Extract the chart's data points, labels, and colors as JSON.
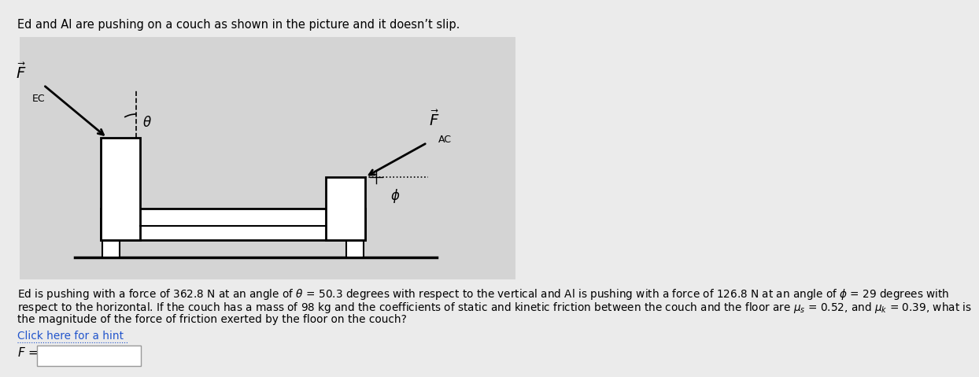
{
  "title": "Ed and Al are pushing on a couch as shown in the picture and it doesn’t slip.",
  "bg_color": "#ebebeb",
  "diagram_bg": "#d4d4d4",
  "line1": "Ed is pushing with a force of 362.8 N at an angle of $\\theta$ = 50.3 degrees with respect to the vertical and Al is pushing with a force of 126.8 N at an angle of $\\phi$ = 29 degrees with",
  "line2": "respect to the horizontal. If the couch has a mass of 98 kg and the coefficients of static and kinetic friction between the couch and the floor are $\\mu_s$ = 0.52, and $\\mu_k$ = 0.39, what is",
  "line3": "the magnitude of the force of friction exerted by the floor on the couch?",
  "hint_text": "Click here for a hint",
  "answer_label": "F ="
}
